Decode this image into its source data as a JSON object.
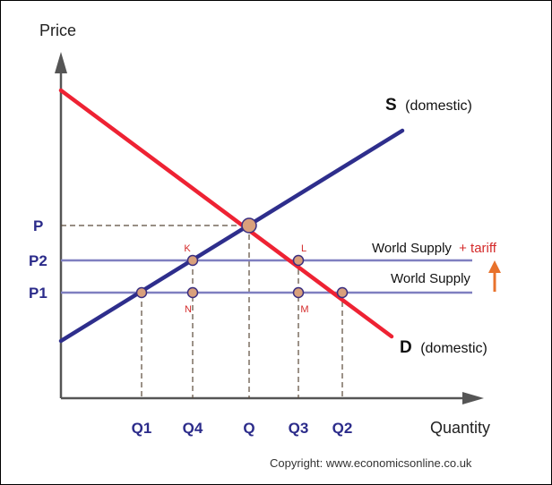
{
  "axes": {
    "y_title": "Price",
    "x_title": "Quantity"
  },
  "price_labels": {
    "p": "P",
    "p2": "P2",
    "p1": "P1"
  },
  "quantity_labels": {
    "q1": "Q1",
    "q4": "Q4",
    "q": "Q",
    "q3": "Q3",
    "q2": "Q2"
  },
  "points": {
    "k": "K",
    "l": "L",
    "n": "N",
    "m": "M"
  },
  "curves": {
    "supply_letter": "S",
    "supply_sub": "(domestic)",
    "demand_letter": "D",
    "demand_sub": "(domestic)"
  },
  "lines": {
    "world_supply_tariff_main": "World Supply",
    "world_supply_tariff_plus": "+ tariff",
    "world_supply": "World Supply"
  },
  "copyright": "Copyright: www.economicsonline.co.uk",
  "colors": {
    "demand": "#ee2233",
    "supply": "#2e2e8c",
    "world_line": "#7f7fc0",
    "point_fill": "#d9a07c",
    "arrow": "#e8722c",
    "tick_text": "#2b2b8a"
  }
}
